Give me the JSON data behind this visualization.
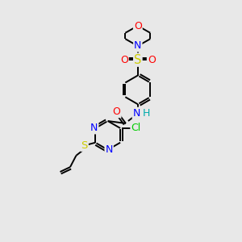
{
  "background_color": "#e8e8e8",
  "bond_color": "#000000",
  "atom_colors": {
    "N": "#0000ff",
    "O": "#ff0000",
    "S": "#cccc00",
    "Cl": "#00cc00",
    "H": "#00aaaa",
    "C": "#000000"
  },
  "figsize": [
    3.0,
    3.0
  ],
  "dpi": 100,
  "lw": 1.4,
  "fs": 8.5
}
